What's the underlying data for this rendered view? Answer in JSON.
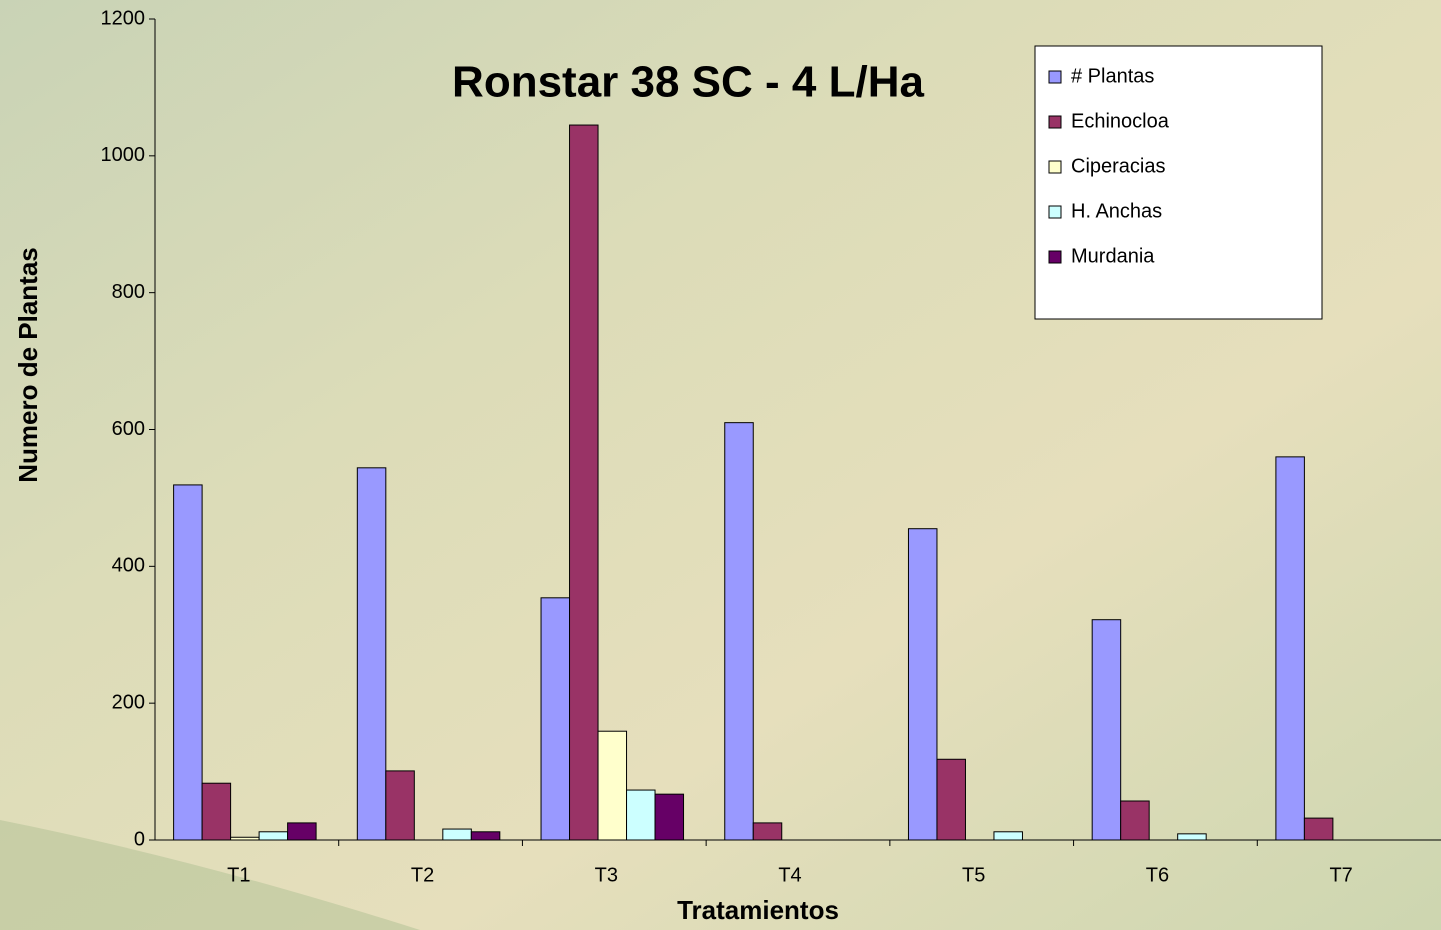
{
  "chart_data": {
    "type": "bar",
    "title": "Ronstar 38 SC - 4 L/Ha",
    "x_label": "Tratamientos",
    "y_label": "Numero de Plantas",
    "categories": [
      "T1",
      "T2",
      "T3",
      "T4",
      "T5",
      "T6",
      "T7"
    ],
    "series": [
      {
        "name": "# Plantas",
        "color": "#9999ff",
        "values": [
          519,
          544,
          354,
          610,
          455,
          322,
          560
        ]
      },
      {
        "name": "Echinocloa",
        "color": "#993366",
        "values": [
          83,
          101,
          1045,
          25,
          118,
          57,
          32
        ]
      },
      {
        "name": "Ciperacias",
        "color": "#ffffcc",
        "values": [
          4,
          0,
          159,
          0,
          0,
          0,
          0
        ]
      },
      {
        "name": "H. Anchas",
        "color": "#ccffff",
        "values": [
          12,
          16,
          73,
          0,
          12,
          9,
          0
        ]
      },
      {
        "name": "Murdania",
        "color": "#660066",
        "values": [
          25,
          12,
          67,
          0,
          0,
          0,
          0
        ]
      }
    ],
    "ylim": [
      0,
      1200
    ],
    "yticks": [
      0,
      200,
      400,
      600,
      800,
      1000,
      1200
    ],
    "grid": false,
    "legend_position": "top-right"
  }
}
